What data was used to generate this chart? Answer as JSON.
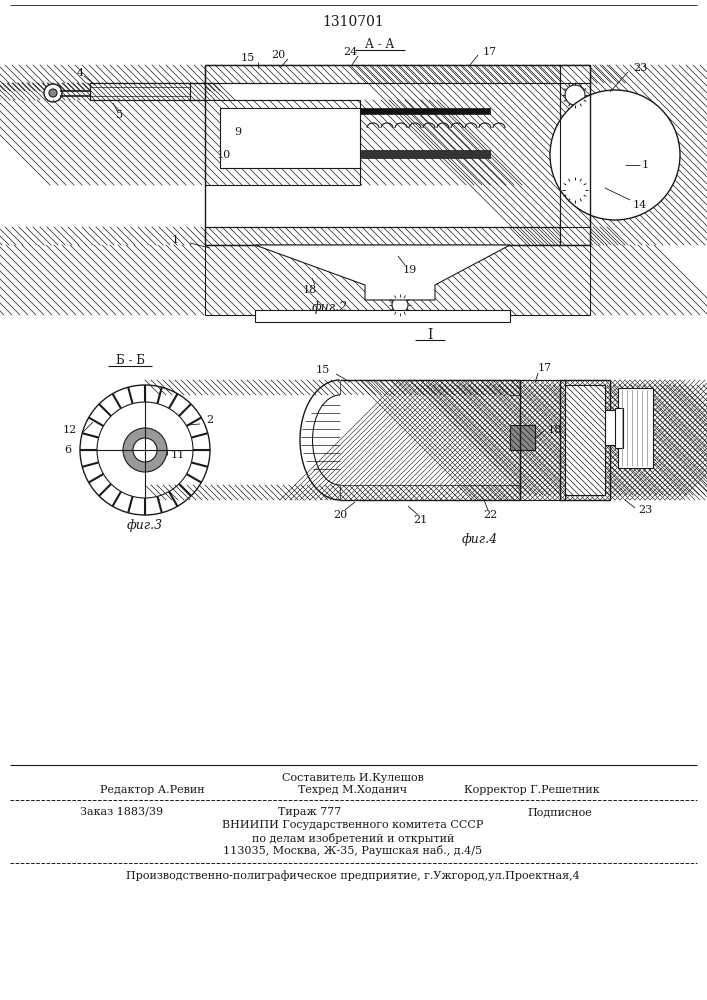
{
  "patent_number": "1310701",
  "bg_color": "#ffffff",
  "lc": "#1a1a1a",
  "hatch_color": "#555555",
  "fig_width": 7.07,
  "fig_height": 10.0,
  "dpi": 100,
  "fig2": {
    "label": "фиг.2",
    "AA_label": "А - А",
    "section_I": "I"
  },
  "fig3": {
    "label": "фиг.3",
    "section": "Б - Б"
  },
  "fig4": {
    "label": "фиг.4"
  },
  "footer": {
    "col1_line1": "Редактор А.Ревин",
    "col2_line1": "Составитель И.Кулешов",
    "col2_line2": "Техред М.Ходанич",
    "col3_line2": "Корректор Г.Решетник",
    "row2_c1": "Заказ 1883/39",
    "row2_c2": "Тираж 777",
    "row2_c3": "Подписное",
    "vnipi1": "ВНИИПИ Государственного комитета СССР",
    "vnipi2": "по делам изобретений и открытий",
    "vnipi3": "113035, Москва, Ж-35, Раушская наб., д.4/5",
    "last": "Производственно-полиграфическое предприятие, г.Ужгород,ул.Проектная,4"
  }
}
